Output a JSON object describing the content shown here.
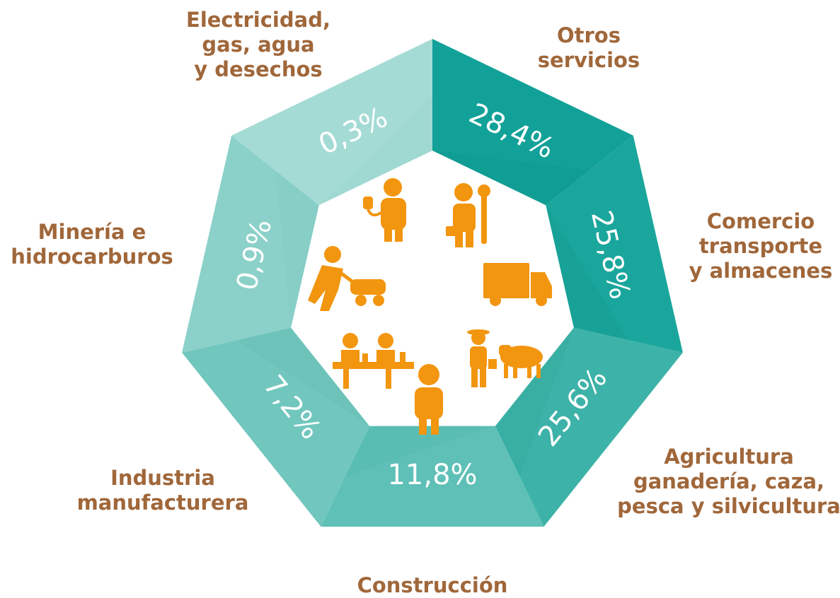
{
  "segments": [
    {
      "label": [
        "Otros",
        "servicios"
      ],
      "value": "28,4%"
    },
    {
      "label": [
        "Comercio",
        "transporte",
        "y almacenes"
      ],
      "value": "25,8%"
    },
    {
      "label": [
        "Agricultura",
        "ganadería, caza,",
        "pesca y silvicultura"
      ],
      "value": "25,6%"
    },
    {
      "label": [
        "Construcción"
      ],
      "value": "11,8%"
    },
    {
      "label": [
        "Industria",
        "manufacturera"
      ],
      "value": "7,2%"
    },
    {
      "label": [
        "Minería e",
        "hidrocarburos"
      ],
      "value": "0,9%"
    },
    {
      "label": [
        "Electricidad,",
        "gas, agua",
        "y desechos"
      ],
      "value": "0,3%"
    }
  ]
}
